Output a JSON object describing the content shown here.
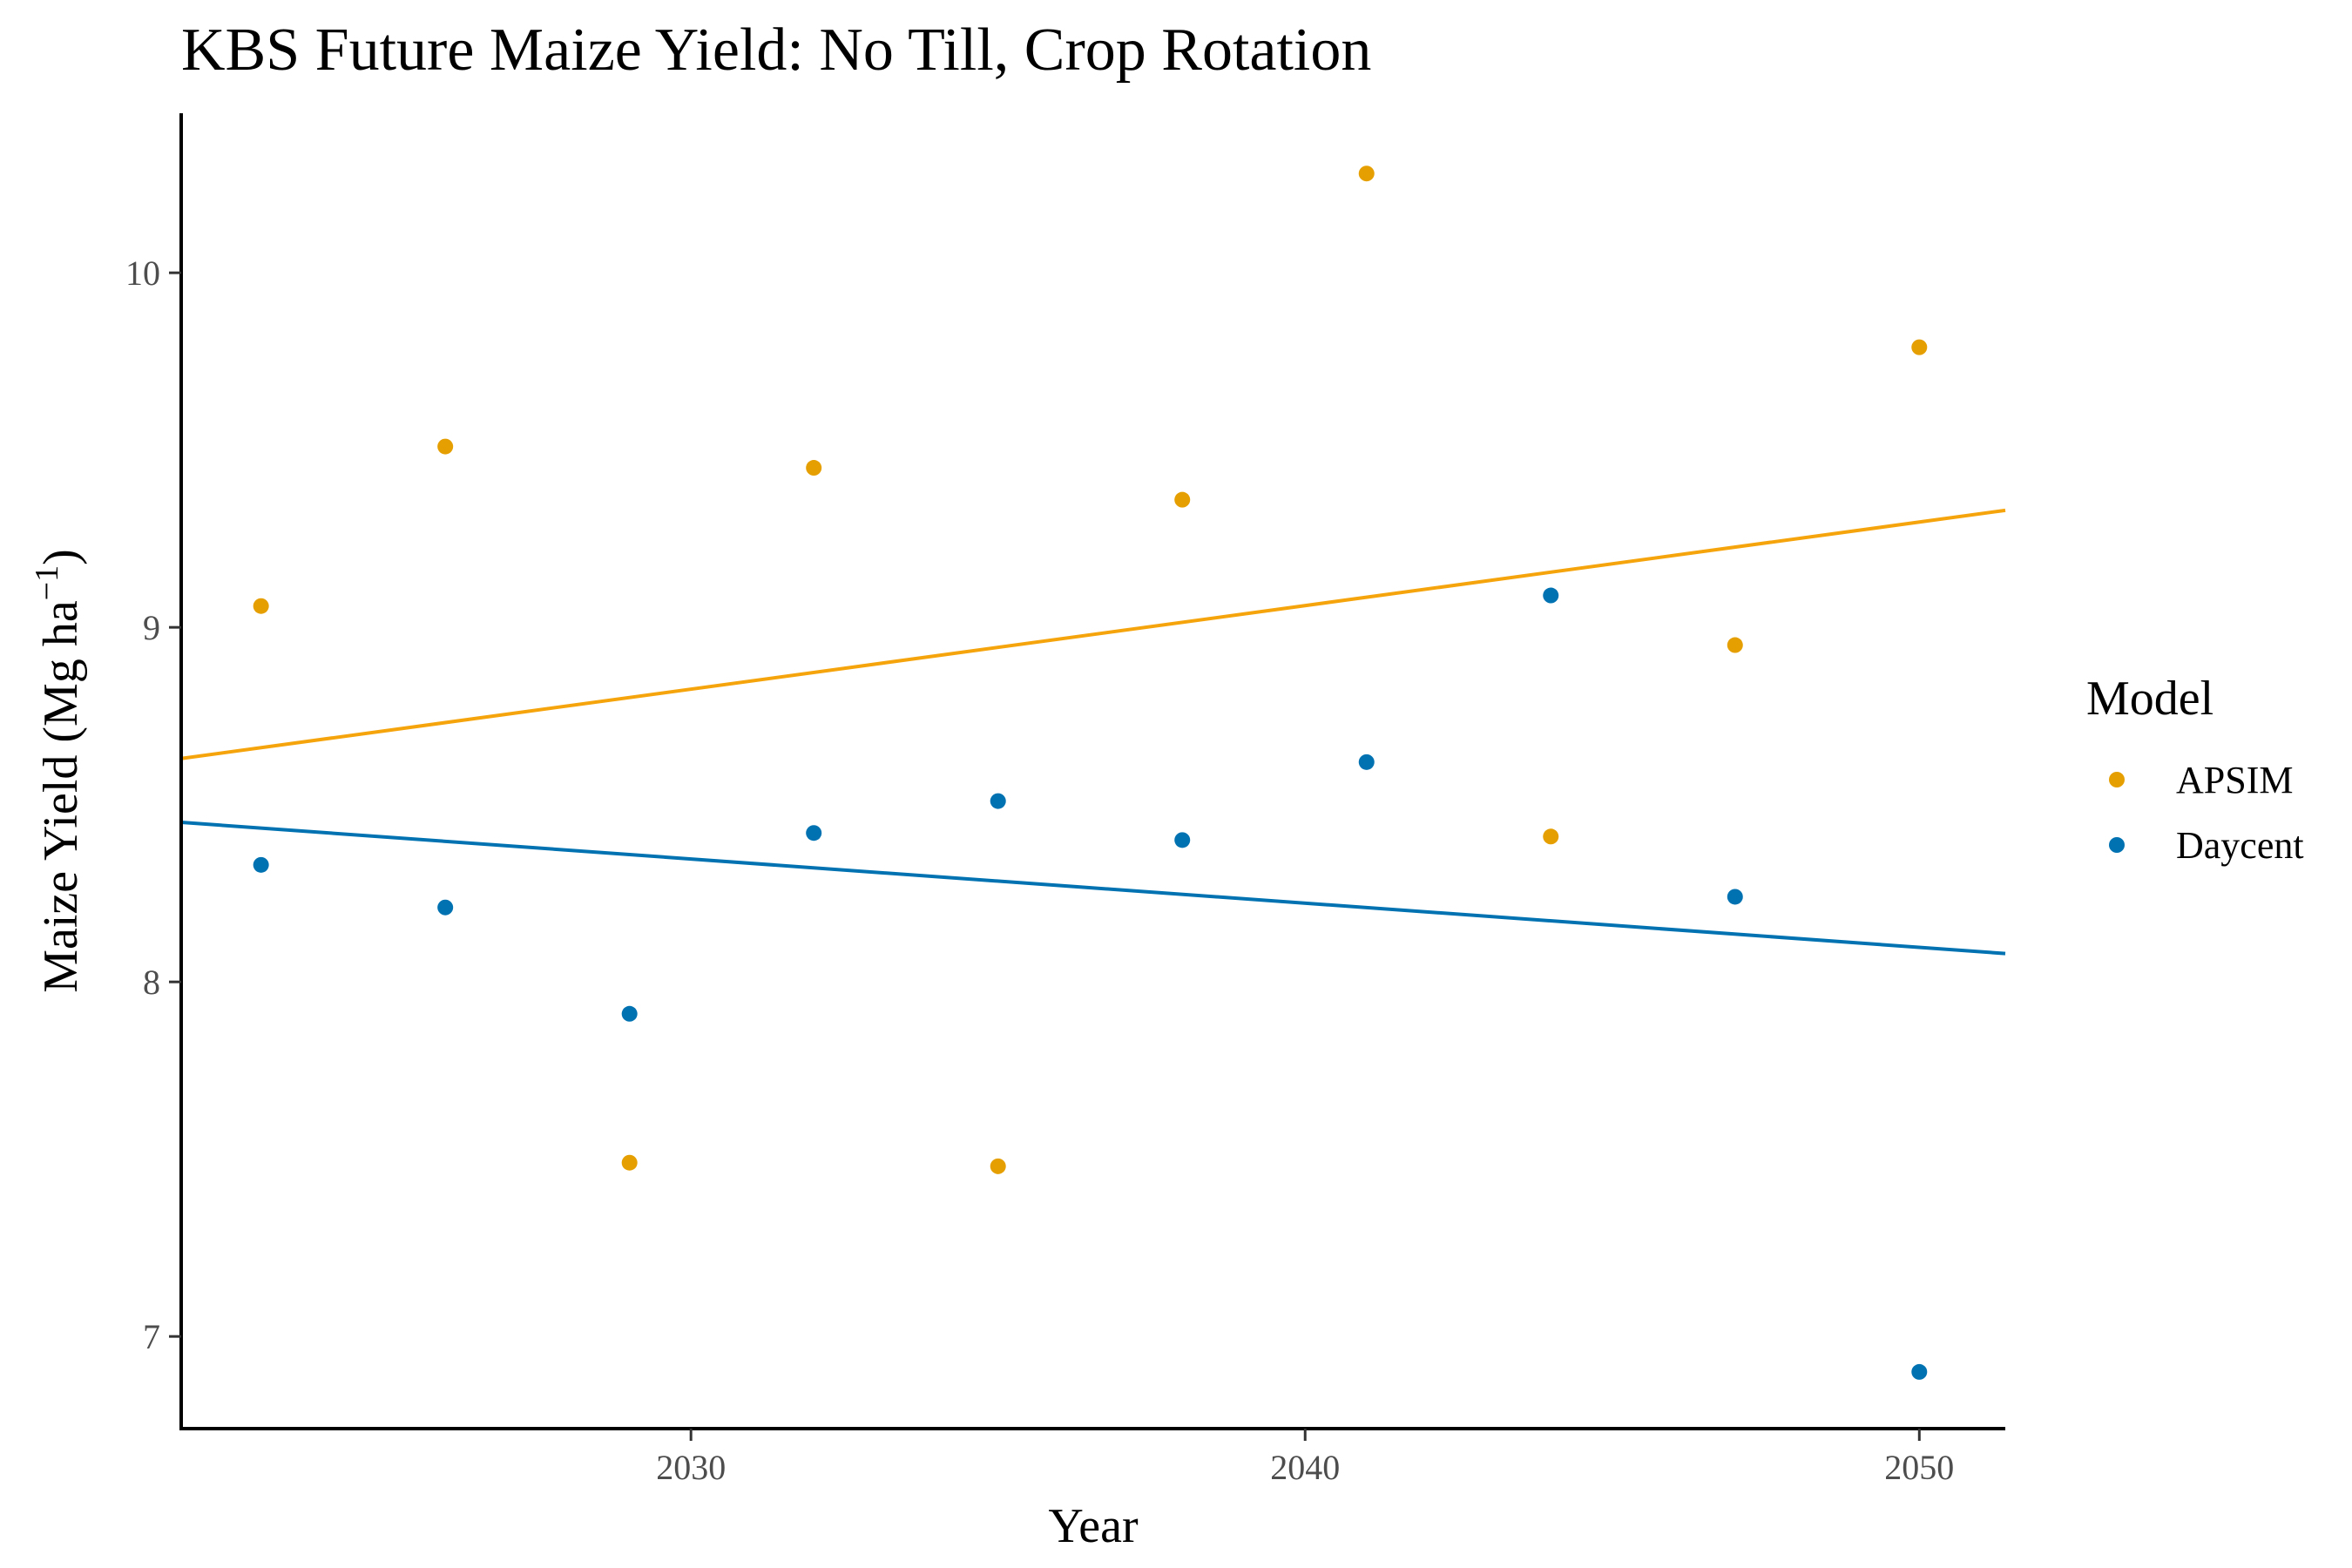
{
  "chart_data": {
    "type": "scatter",
    "title": "KBS Future Maize Yield:  No Till, Crop Rotation",
    "xlabel": "Year",
    "ylabel_main": "Maize Yield (Mg ha",
    "ylabel_sup": "−1",
    "ylabel_close": ")",
    "xlim": [
      2021.7,
      2051.4
    ],
    "ylim": [
      6.74,
      10.45
    ],
    "x_ticks": [
      2030,
      2040,
      2050
    ],
    "y_ticks": [
      7,
      8,
      9,
      10
    ],
    "grid": false,
    "legend": {
      "title": "Model",
      "position": "right"
    },
    "series": [
      {
        "name": "APSIM",
        "color": "#E69F00",
        "line_color": "#F5A40C",
        "x": [
          2023,
          2026,
          2029,
          2032,
          2035,
          2038,
          2041,
          2044,
          2047,
          2050
        ],
        "y": [
          9.06,
          9.51,
          7.49,
          9.45,
          7.48,
          9.36,
          10.28,
          8.41,
          8.95,
          9.79
        ],
        "trend": {
          "x": [
            2021.7,
            2051.4
          ],
          "y": [
            8.63,
            9.33
          ]
        }
      },
      {
        "name": "Daycent",
        "color": "#0072B2",
        "line_color": "#0072B2",
        "x": [
          2023,
          2026,
          2029,
          2032,
          2035,
          2038,
          2041,
          2044,
          2047,
          2050
        ],
        "y": [
          8.33,
          8.21,
          7.91,
          8.42,
          8.51,
          8.4,
          8.62,
          9.09,
          8.24,
          6.9
        ],
        "trend": {
          "x": [
            2021.7,
            2051.4
          ],
          "y": [
            8.45,
            8.08
          ]
        }
      }
    ]
  }
}
